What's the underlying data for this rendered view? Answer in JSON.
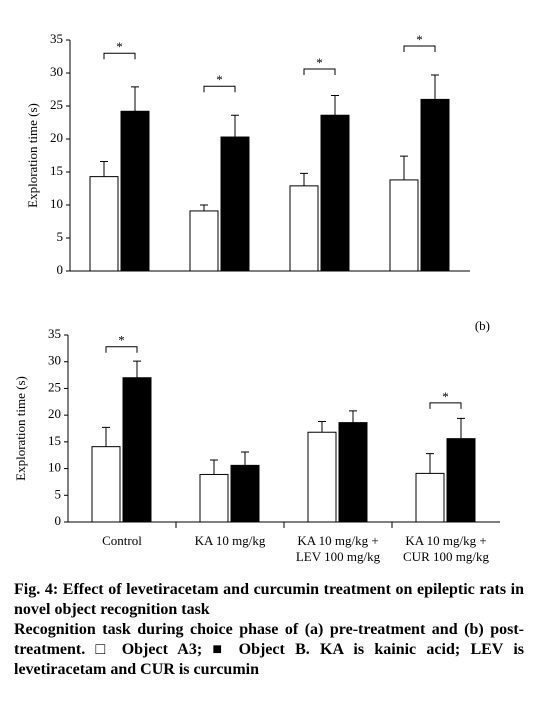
{
  "chart_data": [
    {
      "type": "bar",
      "ylabel": "Exploration time (s)",
      "categories": [
        null,
        null,
        null,
        null
      ],
      "ylim": [
        0,
        35
      ],
      "yticks": [
        0,
        5,
        10,
        15,
        20,
        25,
        30,
        35
      ],
      "series": [
        {
          "color": "#ffffff",
          "values": [
            14.3,
            9.1,
            12.9,
            13.8
          ],
          "errors": [
            2.3,
            0.9,
            1.9,
            3.6
          ]
        },
        {
          "color": "#000000",
          "values": [
            24.2,
            20.3,
            23.6,
            26.0
          ],
          "errors": [
            3.7,
            3.3,
            3.0,
            3.7
          ]
        }
      ],
      "annotations": [
        {
          "text": "*",
          "category": 0,
          "y": 33
        },
        {
          "text": "*",
          "category": 1,
          "y": 28
        },
        {
          "text": "*",
          "category": 2,
          "y": 30.6
        },
        {
          "text": "*",
          "category": 3,
          "y": 34.1
        }
      ]
    },
    {
      "type": "bar",
      "label": "(b)",
      "ylabel": "Exploration time (s)",
      "categories": [
        [
          "Control"
        ],
        [
          "KA 10 mg/kg"
        ],
        [
          "KA 10 mg/kg +",
          "LEV 100 mg/kg"
        ],
        [
          "KA 10 mg/kg +",
          "CUR 100 mg/kg"
        ]
      ],
      "ylim": [
        0,
        35
      ],
      "yticks": [
        0,
        5,
        10,
        15,
        20,
        25,
        30,
        35
      ],
      "series": [
        {
          "color": "#ffffff",
          "values": [
            14.1,
            8.9,
            16.8,
            9.1
          ],
          "errors": [
            3.6,
            2.7,
            2.0,
            3.7
          ]
        },
        {
          "color": "#000000",
          "values": [
            27.0,
            10.6,
            18.6,
            15.6
          ],
          "errors": [
            3.1,
            2.5,
            2.2,
            3.8
          ]
        }
      ],
      "annotations": [
        {
          "text": "*",
          "category": 0,
          "y": 32.8
        },
        {
          "text": "*",
          "category": 3,
          "y": 22.3
        }
      ]
    }
  ],
  "caption": {
    "title": "Fig. 4: Effect of levetiracetam and curcumin treatment on epileptic rats in novel object recognition task",
    "text": "Recognition task during choice phase of (a) pre-treatment and (b) post-treatment. □ Object A3; ■ Object B. KA is kainic acid; LEV is levetiracetam and CUR is curcumin"
  }
}
